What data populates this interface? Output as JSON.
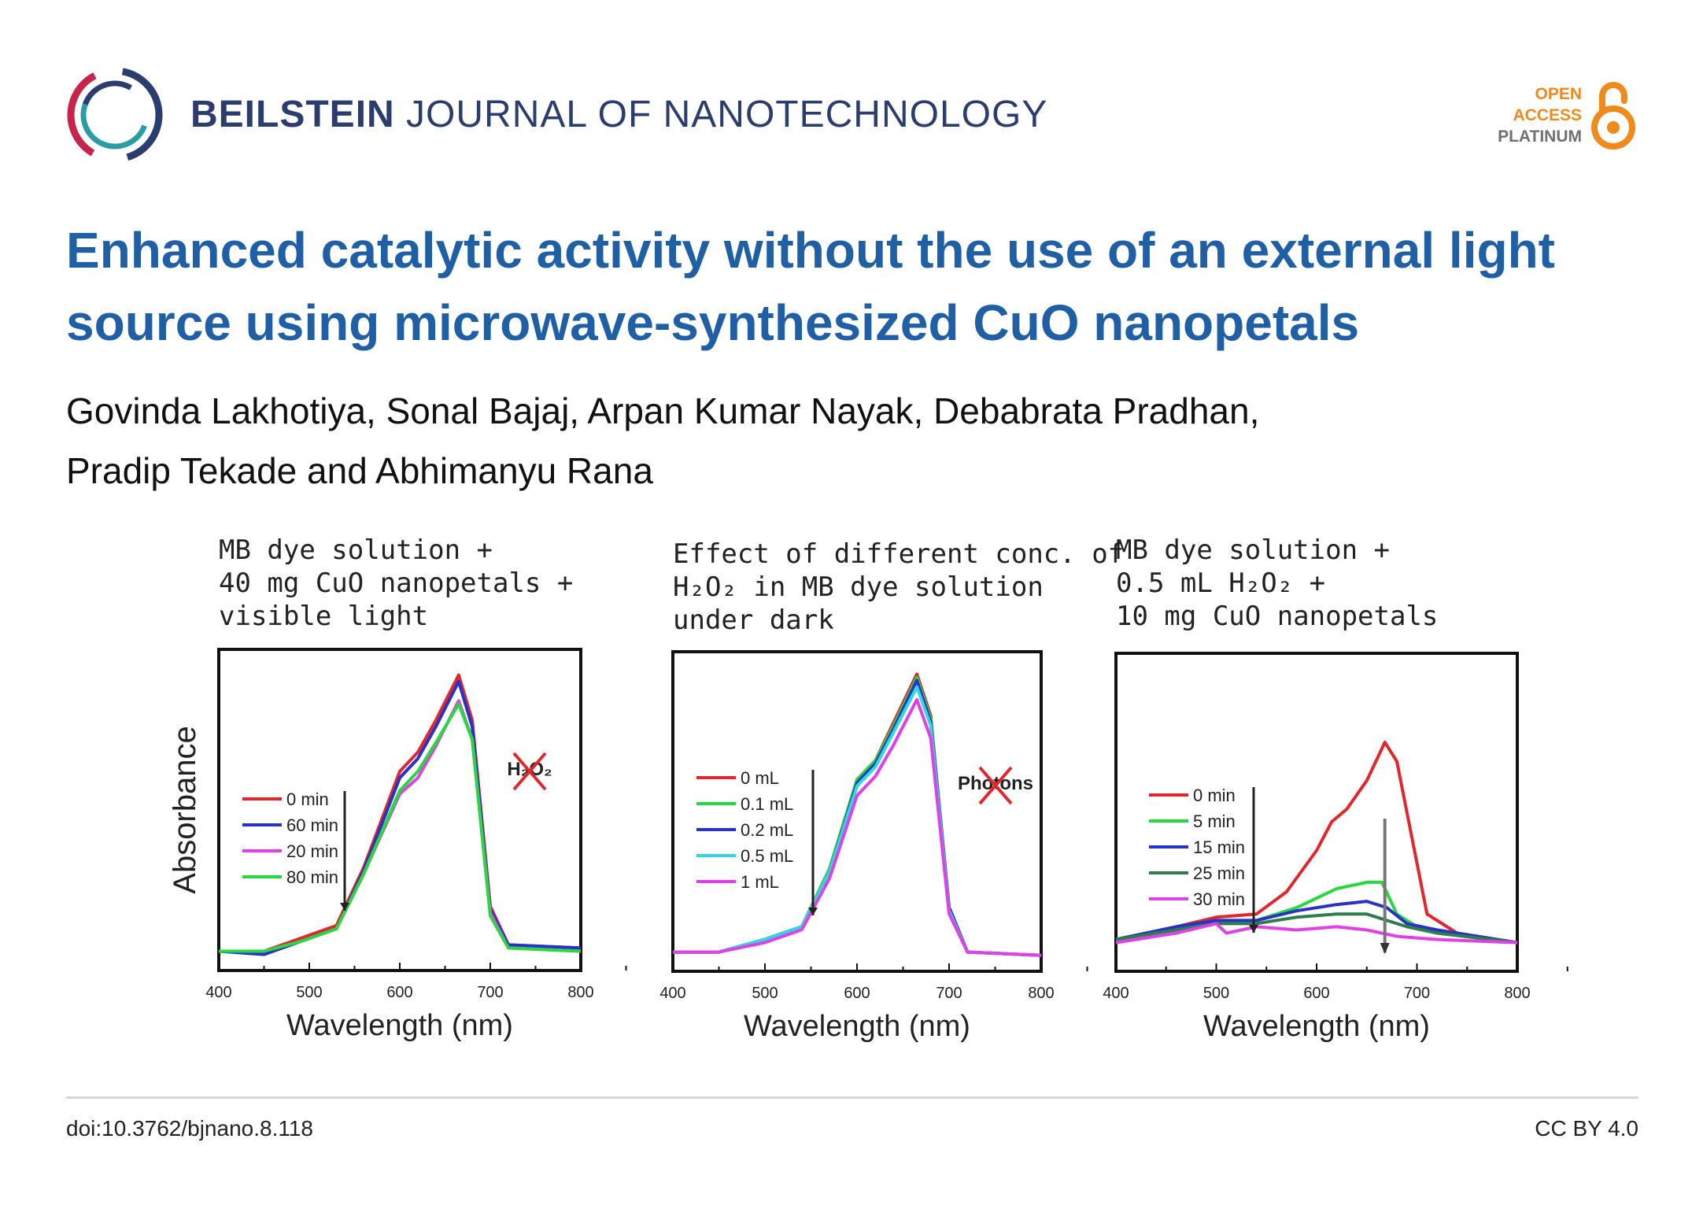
{
  "header": {
    "journal_brand": "BEILSTEIN",
    "journal_rest": "JOURNAL OF NANOTECHNOLOGY",
    "oa_line1": "OPEN",
    "oa_line2": "ACCESS",
    "oa_line3": "PLATINUM"
  },
  "article": {
    "title": "Enhanced catalytic activity without the use of an external light source using microwave-synthesized CuO nanopetals",
    "authors_line1": "Govinda Lakhotiya, Sonal Bajaj, Arpan Kumar Nayak, Debabrata Pradhan,",
    "authors_line2": "Pradip Tekade and Abhimanyu Rana"
  },
  "footer": {
    "doi": "doi:10.3762/bjnano.8.118",
    "license": "CC BY 4.0"
  },
  "colors": {
    "title": "#1f5fa6",
    "journal": "#2b3d6f",
    "oa_orange": "#f08a1c"
  },
  "chart_data": [
    {
      "type": "line",
      "caption": [
        "MB dye solution +",
        "40 mg CuO nanopetals +",
        "visible light"
      ],
      "ylabel": "Absorbance",
      "xlabel": "Wavelength (nm)",
      "xlim": [
        400,
        800
      ],
      "ylim": [
        0,
        1.0
      ],
      "xticks": [
        "400",
        "500",
        "600",
        "700",
        "800"
      ],
      "annotation": "H₂O₂",
      "annotation_crossed": true,
      "arrow": "down",
      "legend": [
        "0 min",
        "60 min",
        "20 min",
        "80 min"
      ],
      "series": [
        {
          "name": "0 min",
          "color": "#e3262c",
          "points": [
            [
              400,
              0.06
            ],
            [
              450,
              0.06
            ],
            [
              490,
              0.1
            ],
            [
              530,
              0.14
            ],
            [
              560,
              0.32
            ],
            [
              600,
              0.62
            ],
            [
              620,
              0.68
            ],
            [
              640,
              0.78
            ],
            [
              665,
              0.92
            ],
            [
              680,
              0.78
            ],
            [
              700,
              0.2
            ],
            [
              720,
              0.08
            ],
            [
              800,
              0.07
            ]
          ]
        },
        {
          "name": "60 min",
          "color": "#2632c8",
          "points": [
            [
              400,
              0.06
            ],
            [
              450,
              0.05
            ],
            [
              490,
              0.09
            ],
            [
              530,
              0.13
            ],
            [
              560,
              0.31
            ],
            [
              600,
              0.6
            ],
            [
              620,
              0.66
            ],
            [
              640,
              0.76
            ],
            [
              665,
              0.9
            ],
            [
              680,
              0.76
            ],
            [
              700,
              0.19
            ],
            [
              720,
              0.08
            ],
            [
              800,
              0.07
            ]
          ]
        },
        {
          "name": "20 min",
          "color": "#e040e8",
          "points": [
            [
              400,
              0.06
            ],
            [
              450,
              0.06
            ],
            [
              490,
              0.09
            ],
            [
              530,
              0.13
            ],
            [
              560,
              0.3
            ],
            [
              600,
              0.55
            ],
            [
              620,
              0.6
            ],
            [
              640,
              0.7
            ],
            [
              665,
              0.84
            ],
            [
              680,
              0.72
            ],
            [
              700,
              0.18
            ],
            [
              720,
              0.07
            ],
            [
              800,
              0.06
            ]
          ]
        },
        {
          "name": "80 min",
          "color": "#27d83e",
          "points": [
            [
              400,
              0.06
            ],
            [
              450,
              0.06
            ],
            [
              490,
              0.09
            ],
            [
              530,
              0.13
            ],
            [
              560,
              0.3
            ],
            [
              600,
              0.56
            ],
            [
              620,
              0.62
            ],
            [
              640,
              0.71
            ],
            [
              665,
              0.83
            ],
            [
              680,
              0.72
            ],
            [
              700,
              0.17
            ],
            [
              720,
              0.07
            ],
            [
              800,
              0.06
            ]
          ]
        }
      ]
    },
    {
      "type": "line",
      "caption": [
        "Effect of different conc. of",
        "H₂O₂ in MB dye solution",
        "under dark"
      ],
      "ylabel": "",
      "xlabel": "Wavelength (nm)",
      "xlim": [
        400,
        800
      ],
      "ylim": [
        0,
        1.0
      ],
      "xticks": [
        "400",
        "500",
        "600",
        "700",
        "800"
      ],
      "annotation": "Photons",
      "annotation_crossed": true,
      "arrow": "down",
      "legend": [
        "0 mL",
        "0.1 mL",
        "0.2 mL",
        "0.5 mL",
        "1 mL"
      ],
      "series": [
        {
          "name": "0 mL",
          "color": "#e3262c",
          "points": [
            [
              400,
              0.06
            ],
            [
              450,
              0.06
            ],
            [
              500,
              0.1
            ],
            [
              540,
              0.14
            ],
            [
              570,
              0.32
            ],
            [
              600,
              0.6
            ],
            [
              620,
              0.66
            ],
            [
              640,
              0.78
            ],
            [
              665,
              0.93
            ],
            [
              680,
              0.8
            ],
            [
              700,
              0.2
            ],
            [
              720,
              0.06
            ],
            [
              800,
              0.05
            ]
          ]
        },
        {
          "name": "0.1 mL",
          "color": "#27d83e",
          "points": [
            [
              400,
              0.06
            ],
            [
              450,
              0.06
            ],
            [
              500,
              0.1
            ],
            [
              540,
              0.14
            ],
            [
              570,
              0.32
            ],
            [
              600,
              0.6
            ],
            [
              620,
              0.66
            ],
            [
              640,
              0.77
            ],
            [
              665,
              0.92
            ],
            [
              680,
              0.79
            ],
            [
              700,
              0.2
            ],
            [
              720,
              0.06
            ],
            [
              800,
              0.05
            ]
          ]
        },
        {
          "name": "0.2 mL",
          "color": "#2632c8",
          "points": [
            [
              400,
              0.06
            ],
            [
              450,
              0.06
            ],
            [
              500,
              0.1
            ],
            [
              540,
              0.14
            ],
            [
              570,
              0.31
            ],
            [
              600,
              0.59
            ],
            [
              620,
              0.65
            ],
            [
              640,
              0.76
            ],
            [
              665,
              0.91
            ],
            [
              680,
              0.78
            ],
            [
              700,
              0.2
            ],
            [
              720,
              0.06
            ],
            [
              800,
              0.05
            ]
          ]
        },
        {
          "name": "0.5 mL",
          "color": "#2fd8e0",
          "points": [
            [
              400,
              0.06
            ],
            [
              450,
              0.06
            ],
            [
              500,
              0.1
            ],
            [
              540,
              0.14
            ],
            [
              570,
              0.31
            ],
            [
              600,
              0.58
            ],
            [
              620,
              0.64
            ],
            [
              640,
              0.75
            ],
            [
              665,
              0.89
            ],
            [
              680,
              0.77
            ],
            [
              700,
              0.19
            ],
            [
              720,
              0.06
            ],
            [
              800,
              0.05
            ]
          ]
        },
        {
          "name": "1 mL",
          "color": "#e040e8",
          "points": [
            [
              400,
              0.06
            ],
            [
              450,
              0.06
            ],
            [
              500,
              0.09
            ],
            [
              540,
              0.13
            ],
            [
              570,
              0.29
            ],
            [
              600,
              0.55
            ],
            [
              620,
              0.61
            ],
            [
              640,
              0.71
            ],
            [
              665,
              0.85
            ],
            [
              680,
              0.73
            ],
            [
              700,
              0.18
            ],
            [
              720,
              0.06
            ],
            [
              800,
              0.05
            ]
          ]
        }
      ]
    },
    {
      "type": "line",
      "caption": [
        "MB dye solution +",
        "0.5 mL H₂O₂ +",
        "10 mg CuO nanopetals"
      ],
      "ylabel": "",
      "xlabel": "Wavelength (nm)",
      "xlim": [
        400,
        800
      ],
      "ylim": [
        0,
        1.0
      ],
      "xticks": [
        "400",
        "500",
        "600",
        "700",
        "800"
      ],
      "annotation": "",
      "annotation_crossed": false,
      "arrow": "down",
      "legend": [
        "0 min",
        "5 min",
        "15 min",
        "25 min",
        "30 min"
      ],
      "series": [
        {
          "name": "0 min",
          "color": "#e3262c",
          "points": [
            [
              400,
              0.1
            ],
            [
              460,
              0.14
            ],
            [
              500,
              0.17
            ],
            [
              540,
              0.18
            ],
            [
              570,
              0.25
            ],
            [
              600,
              0.38
            ],
            [
              615,
              0.47
            ],
            [
              630,
              0.51
            ],
            [
              650,
              0.6
            ],
            [
              668,
              0.72
            ],
            [
              680,
              0.66
            ],
            [
              695,
              0.42
            ],
            [
              710,
              0.18
            ],
            [
              740,
              0.12
            ],
            [
              800,
              0.09
            ]
          ]
        },
        {
          "name": "5 min",
          "color": "#27d83e",
          "points": [
            [
              400,
              0.1
            ],
            [
              460,
              0.14
            ],
            [
              500,
              0.16
            ],
            [
              540,
              0.16
            ],
            [
              580,
              0.2
            ],
            [
              620,
              0.26
            ],
            [
              650,
              0.28
            ],
            [
              665,
              0.28
            ],
            [
              680,
              0.18
            ],
            [
              700,
              0.14
            ],
            [
              740,
              0.12
            ],
            [
              800,
              0.09
            ]
          ]
        },
        {
          "name": "15 min",
          "color": "#2632c8",
          "points": [
            [
              400,
              0.1
            ],
            [
              460,
              0.14
            ],
            [
              500,
              0.16
            ],
            [
              540,
              0.16
            ],
            [
              580,
              0.19
            ],
            [
              620,
              0.21
            ],
            [
              650,
              0.22
            ],
            [
              670,
              0.2
            ],
            [
              690,
              0.15
            ],
            [
              720,
              0.13
            ],
            [
              800,
              0.09
            ]
          ]
        },
        {
          "name": "25 min",
          "color": "#2e7d4a",
          "points": [
            [
              400,
              0.1
            ],
            [
              460,
              0.13
            ],
            [
              500,
              0.15
            ],
            [
              540,
              0.15
            ],
            [
              580,
              0.17
            ],
            [
              620,
              0.18
            ],
            [
              650,
              0.18
            ],
            [
              670,
              0.16
            ],
            [
              690,
              0.14
            ],
            [
              720,
              0.12
            ],
            [
              800,
              0.09
            ]
          ]
        },
        {
          "name": "30 min",
          "color": "#e040e8",
          "points": [
            [
              400,
              0.09
            ],
            [
              460,
              0.12
            ],
            [
              500,
              0.15
            ],
            [
              510,
              0.12
            ],
            [
              540,
              0.14
            ],
            [
              580,
              0.13
            ],
            [
              620,
              0.14
            ],
            [
              650,
              0.13
            ],
            [
              680,
              0.11
            ],
            [
              720,
              0.1
            ],
            [
              800,
              0.09
            ]
          ]
        }
      ]
    }
  ]
}
